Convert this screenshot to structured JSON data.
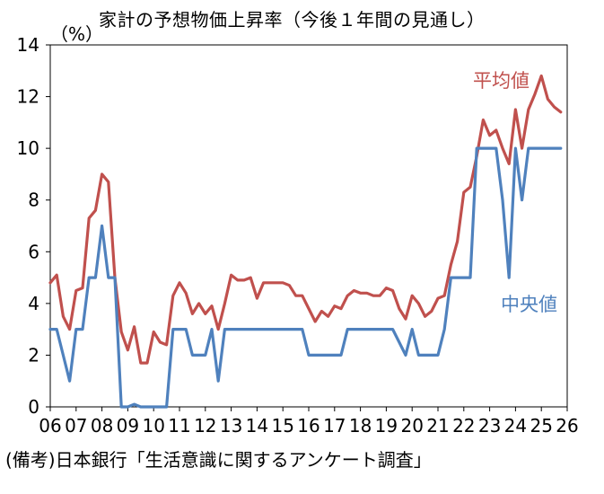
{
  "chart_data": {
    "type": "line",
    "title": "家計の予想物価上昇率（今後１年間の見通し）",
    "ylabel": "（%）",
    "xlabel": "",
    "source": "(備考)日本銀行「生活意識に関するアンケート調査」",
    "ylim": [
      0,
      14
    ],
    "yticks": [
      0,
      2,
      4,
      6,
      8,
      10,
      12,
      14
    ],
    "xlim": [
      2006,
      2026
    ],
    "xtick_labels": [
      "06",
      "07",
      "08",
      "09",
      "10",
      "11",
      "12",
      "13",
      "14",
      "15",
      "16",
      "17",
      "18",
      "19",
      "20",
      "21",
      "22",
      "23",
      "24",
      "25",
      "26"
    ],
    "grid": false,
    "series": [
      {
        "name": "平均値",
        "color": "#c0504d",
        "x": [
          2006.0,
          2006.25,
          2006.5,
          2006.75,
          2007.0,
          2007.25,
          2007.5,
          2007.75,
          2008.0,
          2008.25,
          2008.5,
          2008.75,
          2009.0,
          2009.25,
          2009.5,
          2009.75,
          2010.0,
          2010.25,
          2010.5,
          2010.75,
          2011.0,
          2011.25,
          2011.5,
          2011.75,
          2012.0,
          2012.25,
          2012.5,
          2012.75,
          2013.0,
          2013.25,
          2013.5,
          2013.75,
          2014.0,
          2014.25,
          2014.5,
          2014.75,
          2015.0,
          2015.25,
          2015.5,
          2015.75,
          2016.0,
          2016.25,
          2016.5,
          2016.75,
          2017.0,
          2017.25,
          2017.5,
          2017.75,
          2018.0,
          2018.25,
          2018.5,
          2018.75,
          2019.0,
          2019.25,
          2019.5,
          2019.75,
          2020.0,
          2020.25,
          2020.5,
          2020.75,
          2021.0,
          2021.25,
          2021.5,
          2021.75,
          2022.0,
          2022.25,
          2022.5,
          2022.75,
          2023.0,
          2023.25,
          2023.5,
          2023.75,
          2024.0,
          2024.25,
          2024.5,
          2024.75,
          2025.0,
          2025.25,
          2025.5,
          2025.75
        ],
        "values": [
          4.8,
          5.1,
          3.5,
          3.0,
          4.5,
          4.6,
          7.3,
          7.6,
          9.0,
          8.7,
          5.0,
          2.9,
          2.2,
          3.1,
          1.7,
          1.7,
          2.9,
          2.5,
          2.4,
          4.3,
          4.8,
          4.4,
          3.6,
          4.0,
          3.6,
          3.9,
          3.0,
          4.0,
          5.1,
          4.9,
          4.9,
          5.0,
          4.2,
          4.8,
          4.8,
          4.8,
          4.8,
          4.7,
          4.3,
          4.3,
          3.8,
          3.3,
          3.7,
          3.5,
          3.9,
          3.8,
          4.3,
          4.5,
          4.4,
          4.4,
          4.3,
          4.3,
          4.6,
          4.5,
          3.8,
          3.4,
          4.3,
          4.0,
          3.5,
          3.7,
          4.2,
          4.3,
          5.5,
          6.4,
          8.3,
          8.5,
          9.7,
          11.1,
          10.5,
          10.7,
          10.0,
          9.4,
          11.5,
          10.0,
          11.5,
          12.1,
          12.8,
          11.9,
          11.6,
          11.4
        ]
      },
      {
        "name": "中央値",
        "color": "#4f81bd",
        "x": [
          2006.0,
          2006.25,
          2006.5,
          2006.75,
          2007.0,
          2007.25,
          2007.5,
          2007.75,
          2008.0,
          2008.25,
          2008.5,
          2008.75,
          2009.0,
          2009.25,
          2009.5,
          2009.75,
          2010.0,
          2010.25,
          2010.5,
          2010.75,
          2011.0,
          2011.25,
          2011.5,
          2011.75,
          2012.0,
          2012.25,
          2012.5,
          2012.75,
          2013.0,
          2013.25,
          2013.5,
          2013.75,
          2014.0,
          2014.25,
          2014.5,
          2014.75,
          2015.0,
          2015.25,
          2015.5,
          2015.75,
          2016.0,
          2016.25,
          2016.5,
          2016.75,
          2017.0,
          2017.25,
          2017.5,
          2017.75,
          2018.0,
          2018.25,
          2018.5,
          2018.75,
          2019.0,
          2019.25,
          2019.5,
          2019.75,
          2020.0,
          2020.25,
          2020.5,
          2020.75,
          2021.0,
          2021.25,
          2021.5,
          2021.75,
          2022.0,
          2022.25,
          2022.5,
          2022.75,
          2023.0,
          2023.25,
          2023.5,
          2023.75,
          2024.0,
          2024.25,
          2024.5,
          2024.75,
          2025.0,
          2025.25,
          2025.5,
          2025.75
        ],
        "values": [
          3,
          3,
          2,
          1,
          3,
          3,
          5,
          5,
          7,
          5,
          5,
          0,
          0,
          0.1,
          0,
          0,
          0,
          0,
          0,
          3,
          3,
          3,
          2,
          2,
          2,
          3,
          1,
          3,
          3,
          3,
          3,
          3,
          3,
          3,
          3,
          3,
          3,
          3,
          3,
          3,
          2,
          2,
          2,
          2,
          2,
          2,
          3,
          3,
          3,
          3,
          3,
          3,
          3,
          3,
          2.5,
          2,
          3,
          2,
          2,
          2,
          2,
          3,
          5,
          5,
          5,
          5,
          10,
          10,
          10,
          10,
          8,
          5,
          10,
          8,
          10,
          10,
          10,
          10,
          10,
          10
        ]
      }
    ]
  }
}
